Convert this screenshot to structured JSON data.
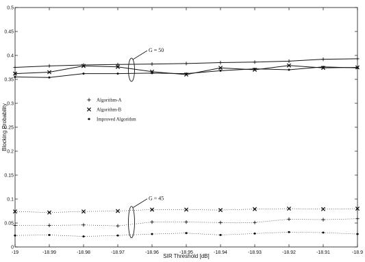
{
  "chart_data": {
    "type": "line",
    "xlabel": "SIR Threshold [dB]",
    "ylabel": "Blocking Probability",
    "xlim": [
      -19,
      -18.9
    ],
    "ylim": [
      0,
      0.5
    ],
    "x_ticks": [
      "-19",
      "-18.99",
      "-18.98",
      "-18.97",
      "-18.96",
      "-18.95",
      "-18.94",
      "-18.93",
      "-18.92",
      "-18.91",
      "-18.9"
    ],
    "y_ticks": [
      "0",
      "0.05",
      "0.1",
      "0.15",
      "0.2",
      "0.25",
      "0.3",
      "0.35",
      "0.4",
      "0.45",
      "0.5"
    ],
    "grid": false,
    "legend_position": "center-left",
    "x": [
      -19,
      -18.99,
      -18.98,
      -18.97,
      -18.96,
      -18.95,
      -18.94,
      -18.93,
      -18.92,
      -18.91,
      -18.9
    ],
    "series": [
      {
        "name": "Algorithm-A",
        "marker": "+",
        "linestyle": "solid",
        "group": "G = 50",
        "values": [
          0.375,
          0.378,
          0.38,
          0.381,
          0.382,
          0.383,
          0.385,
          0.386,
          0.388,
          0.392,
          0.393
        ]
      },
      {
        "name": "Algorithm-B",
        "marker": "x",
        "linestyle": "solid",
        "group": "G = 50",
        "values": [
          0.362,
          0.365,
          0.378,
          0.376,
          0.366,
          0.36,
          0.374,
          0.37,
          0.379,
          0.374,
          0.375
        ]
      },
      {
        "name": "Improved Algorithm",
        "marker": "*",
        "linestyle": "solid",
        "group": "G = 50",
        "values": [
          0.355,
          0.354,
          0.362,
          0.362,
          0.363,
          0.362,
          0.368,
          0.372,
          0.37,
          0.376,
          0.374
        ]
      },
      {
        "name": "Algorithm-A",
        "marker": "+",
        "linestyle": "dotted",
        "group": "G = 45",
        "values": [
          0.045,
          0.045,
          0.046,
          0.044,
          0.052,
          0.052,
          0.051,
          0.051,
          0.058,
          0.057,
          0.059
        ]
      },
      {
        "name": "Algorithm-B",
        "marker": "x",
        "linestyle": "dotted",
        "group": "G = 45",
        "values": [
          0.074,
          0.072,
          0.074,
          0.075,
          0.078,
          0.078,
          0.077,
          0.079,
          0.08,
          0.079,
          0.08
        ]
      },
      {
        "name": "Improved Algorithm",
        "marker": "*",
        "linestyle": "dotted",
        "group": "G = 45",
        "values": [
          0.024,
          0.025,
          0.022,
          0.024,
          0.027,
          0.029,
          0.025,
          0.028,
          0.031,
          0.03,
          0.027
        ]
      }
    ],
    "legend": [
      "Algorithm-A",
      "Algorithm-B",
      "Improved Algorithm"
    ],
    "annotations": [
      {
        "text": "G = 50",
        "x": -18.965,
        "y": 0.37
      },
      {
        "text": "G = 45",
        "x": -18.965,
        "y": 0.055
      }
    ]
  }
}
